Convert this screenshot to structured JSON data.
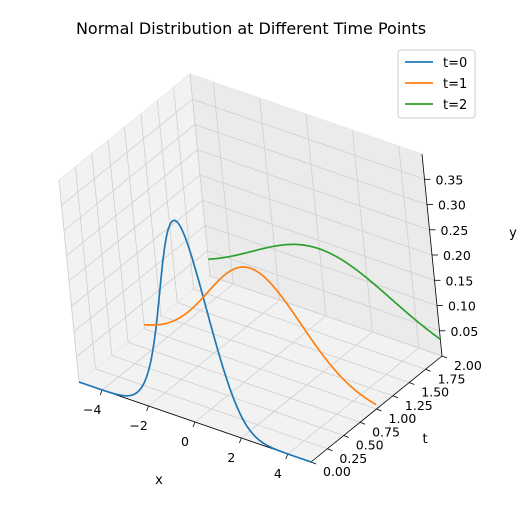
{
  "chart_data": {
    "type": "line",
    "projection": "3d",
    "title": "Normal Distribution at Different Time Points",
    "xlabel": "x",
    "ylabel": "t",
    "zlabel": "y",
    "xlim": [
      -5,
      5
    ],
    "ylim": [
      0,
      2
    ],
    "zlim": [
      0,
      0.4
    ],
    "xticks": [
      "−4",
      "−2",
      "0",
      "2",
      "4"
    ],
    "yticks": [
      "0.00",
      "0.25",
      "0.50",
      "0.75",
      "1.00",
      "1.25",
      "1.50",
      "1.75",
      "2.00"
    ],
    "zticks": [
      "0.05",
      "0.10",
      "0.15",
      "0.20",
      "0.25",
      "0.30",
      "0.35"
    ],
    "grid": true,
    "legend_position": "top-right",
    "series": [
      {
        "name": "t=0",
        "t": 0,
        "sigma": 1.0,
        "color": "#1f77b4"
      },
      {
        "name": "t=1",
        "t": 1,
        "sigma": 2.0,
        "color": "#ff7f0e"
      },
      {
        "name": "t=2",
        "t": 2,
        "sigma": 3.0,
        "color": "#2ca02c"
      }
    ]
  }
}
